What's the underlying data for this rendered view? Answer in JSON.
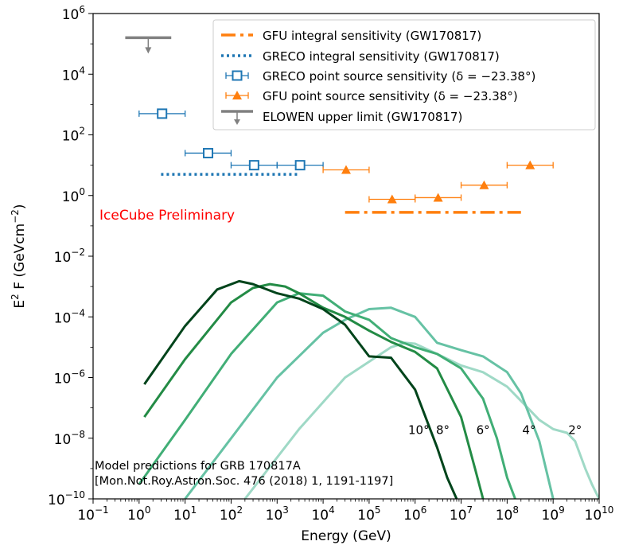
{
  "chart_data": {
    "type": "line",
    "xlabel": "Energy (GeV)",
    "ylabel": "E² F (GeVcm⁻²)",
    "xscale": "log",
    "yscale": "log",
    "xlim": [
      0.1,
      10000000000.0
    ],
    "ylim": [
      1e-10,
      1000000.0
    ],
    "x_ticks": [
      {
        "base": "10",
        "exp": "−1",
        "value": 0.1
      },
      {
        "base": "10",
        "exp": "0",
        "value": 1
      },
      {
        "base": "10",
        "exp": "1",
        "value": 10
      },
      {
        "base": "10",
        "exp": "2",
        "value": 100
      },
      {
        "base": "10",
        "exp": "3",
        "value": 1000
      },
      {
        "base": "10",
        "exp": "4",
        "value": 10000
      },
      {
        "base": "10",
        "exp": "5",
        "value": 100000
      },
      {
        "base": "10",
        "exp": "6",
        "value": 1000000
      },
      {
        "base": "10",
        "exp": "7",
        "value": 10000000
      },
      {
        "base": "10",
        "exp": "8",
        "value": 100000000
      },
      {
        "base": "10",
        "exp": "9",
        "value": 1000000000
      },
      {
        "base": "10",
        "exp": "10",
        "value": 10000000000
      }
    ],
    "y_ticks": [
      {
        "base": "10",
        "exp": "−10",
        "value": 1e-10
      },
      {
        "base": "10",
        "exp": "−8",
        "value": 1e-08
      },
      {
        "base": "10",
        "exp": "−6",
        "value": 1e-06
      },
      {
        "base": "10",
        "exp": "−4",
        "value": 0.0001
      },
      {
        "base": "10",
        "exp": "−2",
        "value": 0.01
      },
      {
        "base": "10",
        "exp": "0",
        "value": 1
      },
      {
        "base": "10",
        "exp": "2",
        "value": 100
      },
      {
        "base": "10",
        "exp": "4",
        "value": 10000
      },
      {
        "base": "10",
        "exp": "6",
        "value": 1000000
      }
    ],
    "legend": {
      "placement": "top-right",
      "entries": [
        {
          "label": "GFU integral sensitivity (GW170817)",
          "style": "dashdot",
          "color": "#ff7f0e"
        },
        {
          "label": "GRECO integral sensitivity (GW170817)",
          "style": "dotted",
          "color": "#1f77b4"
        },
        {
          "label": "GRECO point source sensitivity (δ = −23.38°)",
          "style": "square-errorbar",
          "color": "#1f77b4"
        },
        {
          "label": "GFU point source sensitivity (δ = −23.38°)",
          "style": "triangle-errorbar",
          "color": "#ff7f0e"
        },
        {
          "label": "ELOWEN upper limit (GW170817)",
          "style": "upper-limit",
          "color": "#808080"
        }
      ]
    },
    "integral_sensitivities": [
      {
        "name": "GFU integral sensitivity (GW170817)",
        "color": "#ff7f0e",
        "x": [
          30000,
          200000000
        ],
        "y": 0.28
      },
      {
        "name": "GRECO integral sensitivity (GW170817)",
        "color": "#1f77b4",
        "x": [
          3,
          3000
        ],
        "y": 5
      }
    ],
    "point_source_sensitivity": [
      {
        "name": "GRECO point source sensitivity (δ = −23.38°)",
        "color": "#1f77b4",
        "marker": "square",
        "points": [
          {
            "x": 3.16,
            "xlo": 1,
            "xhi": 10,
            "y": 500
          },
          {
            "x": 31.6,
            "xlo": 10,
            "xhi": 100,
            "y": 25
          },
          {
            "x": 316,
            "xlo": 100,
            "xhi": 1000,
            "y": 10
          },
          {
            "x": 3160,
            "xlo": 1000,
            "xhi": 10000,
            "y": 10
          }
        ]
      },
      {
        "name": "GFU point source sensitivity (δ = −23.38°)",
        "color": "#ff7f0e",
        "marker": "triangle",
        "points": [
          {
            "x": 31600,
            "xlo": 10000,
            "xhi": 100000,
            "y": 7
          },
          {
            "x": 316000,
            "xlo": 100000,
            "xhi": 1000000,
            "y": 0.75
          },
          {
            "x": 3160000,
            "xlo": 1000000,
            "xhi": 10000000,
            "y": 0.85
          },
          {
            "x": 31600000,
            "xlo": 10000000,
            "xhi": 100000000,
            "y": 2.2
          },
          {
            "x": 316000000,
            "xlo": 100000000,
            "xhi": 1000000000,
            "y": 10
          }
        ]
      }
    ],
    "upper_limit": {
      "name": "ELOWEN upper limit (GW170817)",
      "color": "#808080",
      "x": [
        0.5,
        5
      ],
      "y": 160000
    },
    "series": [
      {
        "name": "2°",
        "color": "#9fd9c6",
        "label_x": 3000000000,
        "label_y": 2e-08,
        "x": [
          200,
          3000,
          30000,
          300000,
          600000,
          1000000,
          3000000,
          10000000,
          30000000,
          100000000,
          200000000,
          500000000,
          1000000000,
          2000000000,
          3000000000,
          5000000000,
          7000000000,
          10000000000
        ],
        "y": [
          1e-10,
          2e-08,
          1e-06,
          1e-05,
          1.4e-05,
          1.3e-05,
          6e-06,
          2.5e-06,
          1.5e-06,
          5e-07,
          1.7e-07,
          4e-08,
          2e-08,
          1.5e-08,
          8e-09,
          1e-09,
          3e-10,
          1e-10
        ]
      },
      {
        "name": "4°",
        "color": "#66c2a4",
        "label_x": 300000000,
        "label_y": 2e-08,
        "x": [
          10,
          100,
          1000,
          10000,
          30000,
          100000,
          300000,
          1000000,
          3000000,
          10000000,
          30000000,
          100000000,
          200000000,
          500000000,
          1000000000
        ],
        "y": [
          1e-10,
          1e-08,
          1e-06,
          3e-05,
          8e-05,
          0.00018,
          0.0002,
          0.0001,
          1.4e-05,
          8e-06,
          5e-06,
          1.5e-06,
          3e-07,
          8e-09,
          1e-10
        ]
      },
      {
        "name": "6°",
        "color": "#41ae76",
        "label_x": 30000000,
        "label_y": 2e-08,
        "x": [
          1,
          10,
          100,
          1000,
          3000,
          10000,
          30000,
          100000,
          300000,
          1000000,
          3000000,
          10000000,
          30000000,
          60000000,
          100000000,
          150000000
        ],
        "y": [
          3e-10,
          4e-08,
          6e-06,
          0.0003,
          0.0006,
          0.0005,
          0.00015,
          8e-05,
          2e-05,
          1e-05,
          6e-06,
          2e-06,
          2e-07,
          1e-08,
          5e-10,
          1e-10
        ]
      },
      {
        "name": "8°",
        "color": "#238b45",
        "label_x": 4000000,
        "label_y": 2e-08,
        "x": [
          1.3,
          10,
          100,
          300,
          700,
          1500,
          3000,
          10000,
          30000,
          100000,
          300000,
          1000000,
          3000000,
          10000000,
          20000000,
          30000000
        ],
        "y": [
          5e-08,
          4e-06,
          0.0003,
          0.0009,
          0.0012,
          0.001,
          0.0006,
          0.0002,
          0.0001,
          3.5e-05,
          1.5e-05,
          7e-06,
          2e-06,
          5e-08,
          1e-09,
          1e-10
        ]
      },
      {
        "name": "10°",
        "color": "#00441b",
        "label_x": 1200000,
        "label_y": 2e-08,
        "x": [
          1.3,
          10,
          50,
          150,
          300,
          1000,
          3000,
          10000,
          30000,
          100000,
          300000,
          1000000,
          3000000,
          5000000,
          8000000
        ],
        "y": [
          6e-07,
          5e-05,
          0.0008,
          0.0015,
          0.0012,
          0.0006,
          0.0004,
          0.00018,
          5.5e-05,
          5e-06,
          4.5e-06,
          4e-07,
          5e-09,
          5e-10,
          1e-10
        ]
      }
    ],
    "annotations": {
      "preliminary": "IceCube Preliminary",
      "model_line1": "Model predictions for GRB 170817A",
      "model_line2": "[Mon.Not.Roy.Astron.Soc. 476 (2018) 1, 1191-1197]"
    }
  }
}
